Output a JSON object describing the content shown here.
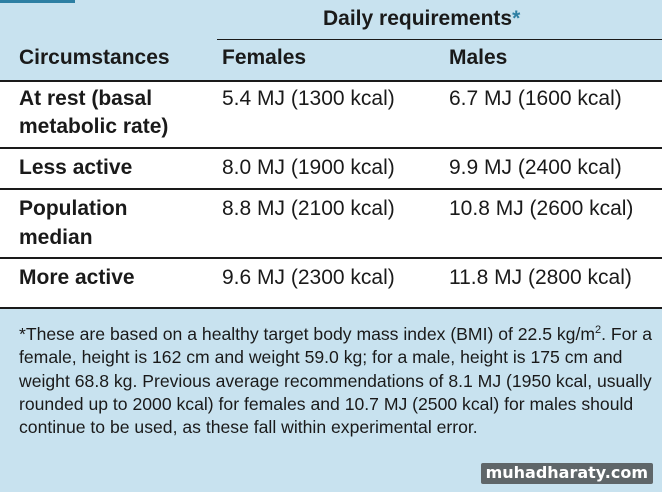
{
  "table": {
    "header": {
      "group_label": "Daily requirements",
      "asterisk": "*",
      "col_circumstances": "Circumstances",
      "col_females": "Females",
      "col_males": "Males"
    },
    "rows": [
      {
        "circumstance_line1": "At rest (basal",
        "circumstance_line2": "metabolic rate)",
        "females": "5.4 MJ (1300 kcal)",
        "males": "6.7 MJ (1600 kcal)"
      },
      {
        "circumstance_line1": "Less active",
        "circumstance_line2": "",
        "females": "8.0 MJ (1900 kcal)",
        "males": "9.9 MJ (2400 kcal)"
      },
      {
        "circumstance_line1": "Population",
        "circumstance_line2": "median",
        "females": "8.8 MJ (2100 kcal)",
        "males": "10.8 MJ (2600 kcal)"
      },
      {
        "circumstance_line1": "More active",
        "circumstance_line2": "",
        "females": "9.6 MJ (2300 kcal)",
        "males": "11.8 MJ (2800 kcal)"
      }
    ]
  },
  "footnote": {
    "line1_before_sup": "*These are based on a healthy target body mass index (BMI) of 22.5 kg/m",
    "line1_sup": "2",
    "line1_after_sup": ".",
    "rest": "For a female, height is 162 cm and weight 59.0 kg; for a male, height is 175 cm and weight 68.8 kg. Previous average recommendations of 8.1 MJ (1950 kcal, usually rounded up to 2000 kcal) for females and 10.7 MJ (2500 kcal) for males should continue to be used, as these fall within experimental error."
  },
  "watermark": "muhadharaty.com",
  "colors": {
    "header_bg": "#c8e2ef",
    "footnote_bg": "#c8e2ef",
    "accent": "#2d7fa3",
    "text": "#1a1a1a"
  }
}
